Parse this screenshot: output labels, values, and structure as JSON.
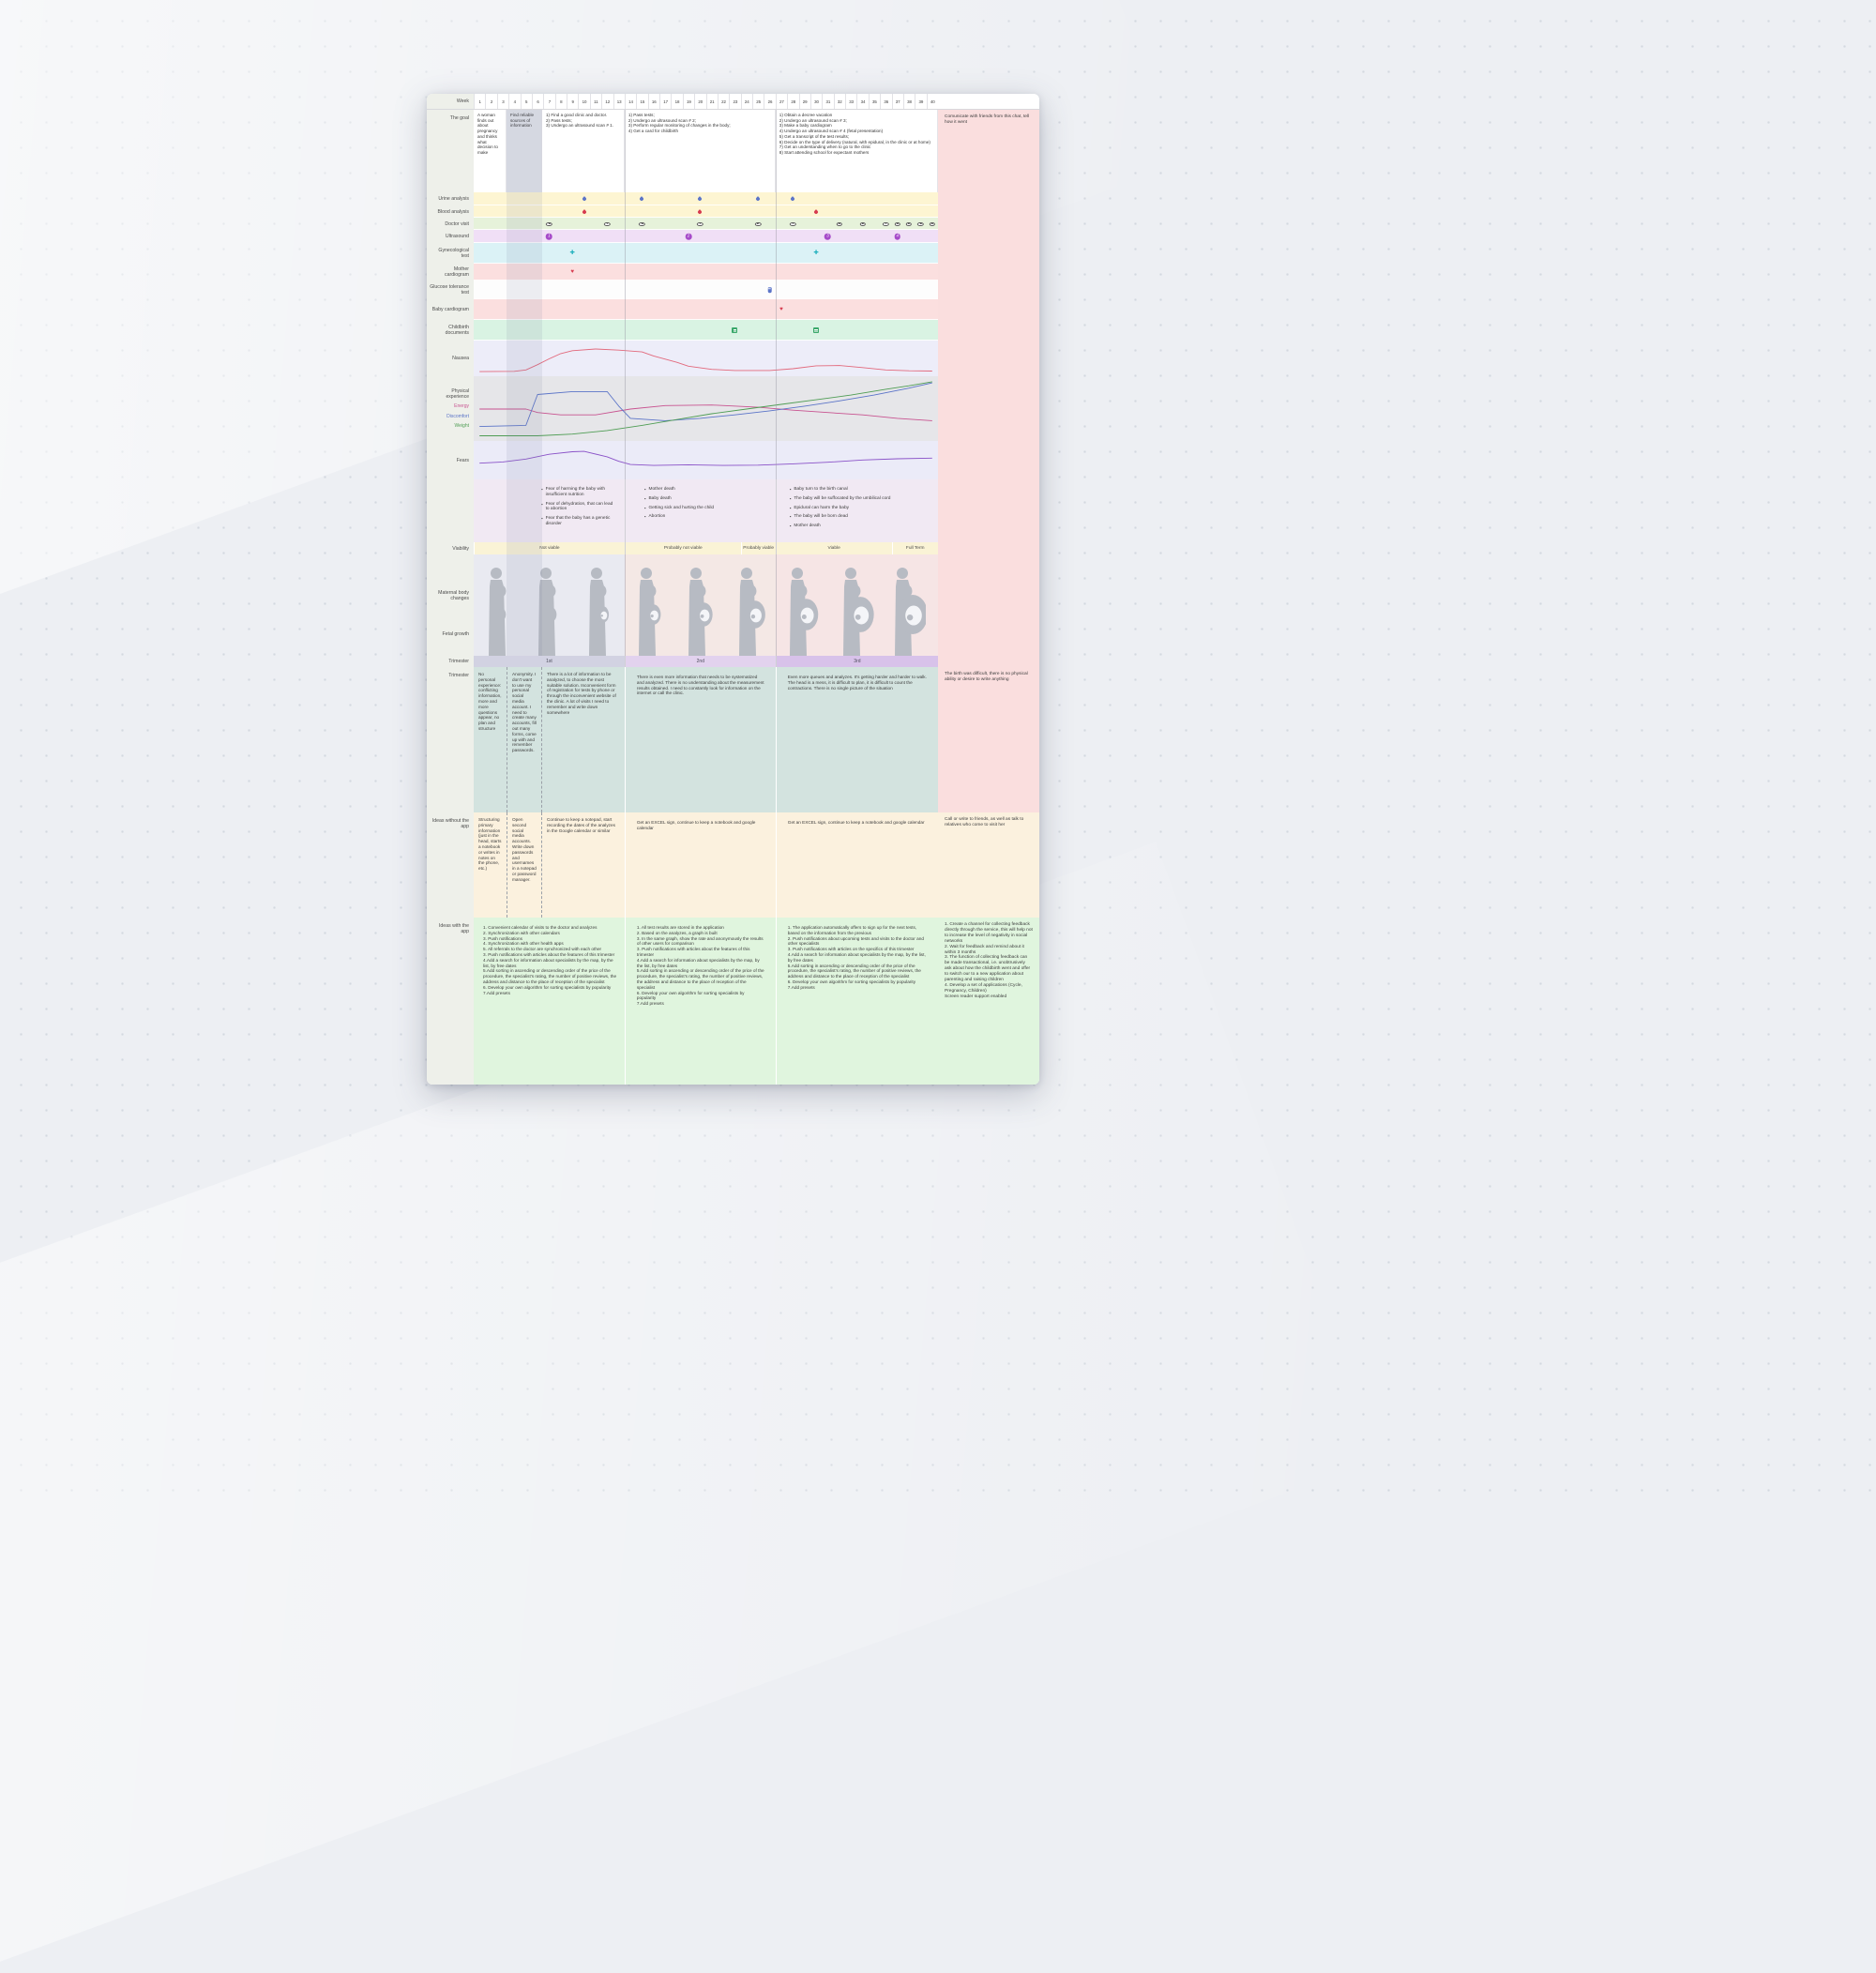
{
  "header": {
    "week_label": "Week",
    "weeks": [
      1,
      2,
      3,
      4,
      5,
      6,
      7,
      8,
      9,
      10,
      11,
      12,
      13,
      14,
      15,
      16,
      17,
      18,
      19,
      20,
      21,
      22,
      23,
      24,
      25,
      26,
      27,
      28,
      29,
      30,
      31,
      32,
      33,
      34,
      35,
      36,
      37,
      38,
      39,
      40
    ]
  },
  "goal": {
    "label": "The goal",
    "cells": [
      "A woman finds out about pregnancy and thinks what decision to make",
      "Find reliable sources of information",
      "1) Find a good clinic and doctor.\n2) Pass tests;\n3) Undergo an ultrasound scan # 1.",
      "1) Pass tests;\n2) Undergo an ultrasound scan # 2;\n3) Perform regular monitoring of changes in the body;\n4) Get a card for childbirth",
      "1) Obtain a decree vacation\n2) Undergo an ultrasound scan # 3;\n3) Make a baby cardiogram\n4) Undergo an ultrasound scan # 4 (fetal presentation)\n5) Get a transcript of the test results;\n6) Decide on the type of delivery (natural, with epidural, in the clinic or at home)\n7) Get an understanding when to go to the clinic\n8) Start attending school for expectant mothers"
    ],
    "right": "Comunicate with friends from this chat, tell how it went"
  },
  "tests": [
    {
      "label": "Urine analysis",
      "icon": "drop",
      "icon_name": "urine-drop-icon",
      "color": "#5b74c8",
      "band": "#fdf5d2",
      "weeks": [
        10,
        15,
        20,
        25,
        28
      ]
    },
    {
      "label": "Blood analysis",
      "icon": "drop",
      "icon_name": "blood-drop-icon",
      "color": "#d63b4f",
      "band": "#fdf5d2",
      "weeks": [
        10,
        20,
        30
      ]
    },
    {
      "label": "Doctor visit",
      "icon": "eye",
      "icon_name": "eye-icon",
      "color": "#5c5c5c",
      "band": "#e6f2da",
      "weeks": [
        7,
        12,
        15,
        20,
        25,
        28,
        32,
        34,
        36,
        37,
        38,
        39,
        40
      ]
    },
    {
      "label": "Ultrasound",
      "icon": "num",
      "icon_name": "ultrasound-number-icon",
      "color": "#a64ac9",
      "band": "#f0dff6",
      "weeks": [
        7,
        19,
        31,
        37
      ]
    },
    {
      "label": "Gynecological test",
      "icon": "plus",
      "icon_name": "plus-icon",
      "color": "#1fb0bd",
      "band": "#dbf2f6",
      "weeks": [
        9,
        30
      ]
    },
    {
      "label": "Mother cardiogram",
      "icon": "heart",
      "icon_name": "heart-icon",
      "color": "#d63b4f",
      "band": "#fbdfdf",
      "weeks": [
        9
      ]
    },
    {
      "label": "Glucose tolerance test",
      "icon": "cup",
      "icon_name": "glucose-cup-icon",
      "color": "#5b74c8",
      "band": "#fdfdfd",
      "weeks": [
        26
      ]
    },
    {
      "label": "Baby cardiogram",
      "icon": "heart",
      "icon_name": "heart-icon",
      "color": "#d63b4f",
      "band": "#fbdfdf",
      "weeks": [
        27
      ]
    },
    {
      "label": "Childbirth documents",
      "icon": "doc",
      "icon_name": "document-icon",
      "color": "#3aa86a",
      "band": "#d9f3e3",
      "weeks": [
        23,
        30
      ]
    }
  ],
  "charts": {
    "nausea": {
      "label": "Nausea",
      "color": "#e2697c",
      "points": [
        [
          1,
          0.06
        ],
        [
          4,
          0.07
        ],
        [
          5,
          0.12
        ],
        [
          6,
          0.3
        ],
        [
          7,
          0.5
        ],
        [
          8,
          0.68
        ],
        [
          9,
          0.78
        ],
        [
          11,
          0.84
        ],
        [
          13,
          0.8
        ],
        [
          15,
          0.74
        ],
        [
          16,
          0.6
        ],
        [
          18,
          0.38
        ],
        [
          19,
          0.25
        ],
        [
          21,
          0.14
        ],
        [
          23,
          0.1
        ],
        [
          26,
          0.1
        ],
        [
          28,
          0.16
        ],
        [
          30,
          0.26
        ],
        [
          32,
          0.27
        ],
        [
          34,
          0.2
        ],
        [
          36,
          0.12
        ],
        [
          38,
          0.09
        ],
        [
          40,
          0.08
        ]
      ]
    },
    "physical": {
      "label": "Physical experience",
      "series": [
        {
          "name": "Energy",
          "color": "#c85390",
          "points": [
            [
              1,
              0.5
            ],
            [
              5,
              0.5
            ],
            [
              6,
              0.44
            ],
            [
              8,
              0.4
            ],
            [
              11,
              0.4
            ],
            [
              14,
              0.5
            ],
            [
              17,
              0.56
            ],
            [
              21,
              0.57
            ],
            [
              25,
              0.53
            ],
            [
              28,
              0.48
            ],
            [
              31,
              0.44
            ],
            [
              34,
              0.4
            ],
            [
              37,
              0.34
            ],
            [
              40,
              0.3
            ]
          ]
        },
        {
          "name": "Discomfort",
          "color": "#5b74c8",
          "points": [
            [
              1,
              0.2
            ],
            [
              5,
              0.22
            ],
            [
              6,
              0.75
            ],
            [
              9,
              0.8
            ],
            [
              12,
              0.8
            ],
            [
              13,
              0.55
            ],
            [
              14,
              0.34
            ],
            [
              17,
              0.3
            ],
            [
              20,
              0.34
            ],
            [
              23,
              0.4
            ],
            [
              26,
              0.47
            ],
            [
              29,
              0.55
            ],
            [
              32,
              0.64
            ],
            [
              35,
              0.74
            ],
            [
              38,
              0.86
            ],
            [
              40,
              0.95
            ]
          ]
        },
        {
          "name": "Weight",
          "color": "#4f9d54",
          "points": [
            [
              1,
              0.04
            ],
            [
              6,
              0.04
            ],
            [
              9,
              0.07
            ],
            [
              12,
              0.13
            ],
            [
              15,
              0.22
            ],
            [
              18,
              0.32
            ],
            [
              21,
              0.42
            ],
            [
              24,
              0.5
            ],
            [
              27,
              0.58
            ],
            [
              30,
              0.66
            ],
            [
              33,
              0.74
            ],
            [
              36,
              0.84
            ],
            [
              38,
              0.9
            ],
            [
              40,
              0.97
            ]
          ]
        }
      ]
    },
    "fears": {
      "label": "Fears",
      "color": "#8a52c8",
      "points": [
        [
          1,
          0.42
        ],
        [
          3,
          0.46
        ],
        [
          5,
          0.55
        ],
        [
          7,
          0.7
        ],
        [
          9,
          0.78
        ],
        [
          10,
          0.79
        ],
        [
          12,
          0.62
        ],
        [
          13,
          0.48
        ],
        [
          14,
          0.38
        ],
        [
          16,
          0.35
        ],
        [
          19,
          0.37
        ],
        [
          22,
          0.35
        ],
        [
          25,
          0.36
        ],
        [
          28,
          0.4
        ],
        [
          31,
          0.45
        ],
        [
          34,
          0.52
        ],
        [
          37,
          0.56
        ],
        [
          40,
          0.58
        ]
      ]
    }
  },
  "fear_lists": [
    {
      "items": [
        "Fear of harming the baby with insufficient nutrition",
        "Fear of dehydration, that can lead to abortion",
        "Fear that the baby has a genetic disorder"
      ]
    },
    {
      "items": [
        "Mother death",
        "Baby death",
        "Getting sick and hurting the child",
        "Abortion"
      ]
    },
    {
      "items": [
        "Baby turn to the birth canal",
        "The baby will be suffocated by the umbilical cord",
        "Epidural can harm the baby",
        "The baby will be born dead",
        "Mother death"
      ]
    }
  ],
  "viability": {
    "label": "Viability",
    "segments": [
      {
        "text": "Not viable",
        "from": 1,
        "to": 13
      },
      {
        "text": "Probably not viable",
        "from": 14,
        "to": 23
      },
      {
        "text": "Probably viable",
        "from": 24,
        "to": 26
      },
      {
        "text": "Viable",
        "from": 27,
        "to": 36
      },
      {
        "text": "Full Term",
        "from": 37,
        "to": 40
      }
    ]
  },
  "body_changes": {
    "maternal_label": "Maternal body changes",
    "fetal_label": "Fetal growth",
    "stages": [
      {
        "belly": 0.02,
        "fetus": false
      },
      {
        "belly": 0.08,
        "fetus": false
      },
      {
        "belly": 0.18,
        "fetus": true
      },
      {
        "belly": 0.32,
        "fetus": true
      },
      {
        "belly": 0.45,
        "fetus": true
      },
      {
        "belly": 0.58,
        "fetus": true
      },
      {
        "belly": 0.72,
        "fetus": true
      },
      {
        "belly": 0.86,
        "fetus": true
      },
      {
        "belly": 1.0,
        "fetus": true
      }
    ]
  },
  "trimester_bar": {
    "label": "Trimester",
    "segments": [
      "1st",
      "2nd",
      "3rd"
    ]
  },
  "trimester_notes": {
    "label": "Trimester",
    "cells": [
      "No personal experience: conflicting information, more and more questions appear, no plan and structure",
      "Anonymity. I don't want to use my personal social media account. I need to create many accounts, fill out many forms, come up with and remember passwords.",
      "There is a lot of information to be analyzed, to choose the most suitable solution. Inconvenient form of registration for tests by phone or through the inconvenient website of the clinic. A lot of visits I need to remember and write down somewhere",
      "There is even more information that needs to be systematized and analyzed. There is no understanding about the measurement results obtained. I need to constantly look for information on the internet or call the clinic.",
      "Even more queues and analyzes. It's getting harder and harder to walk. The head is a mess, it is difficult to plan, it is difficult to count the contractions. There is no single picture of the situation"
    ],
    "right": "The birth was difficult, there is no physical ability or desire to write anything"
  },
  "ideas_without": {
    "label": "Ideas without the app",
    "cells": [
      "Structuring primary information (just in the head, starts a notebook or writes in notes on the phone, etc.)",
      "Open second social media accounts. Write down passwords and usernames in a notepad or password manager.",
      "Continue to keep a notepad, start recording the dates of the analyzes in the Google calendar or similar",
      "Get an EXCEL sign, continue to keep a notebook and google calendar",
      "Get an EXCEL sign, continue to keep a notebook and google calendar"
    ],
    "right": "Call or write to friends, as well as talk to relatives who come to visit her"
  },
  "ideas_with": {
    "label": "Ideas with the app",
    "cells": [
      "1. Convenient calendar of visits to the doctor and analyzes\n2. Synchronization with other calendars\n3. Push notifications\n4. Synchronization with other health apps\n5. All referrals to the doctor are synchronized with each other\n3. Push notifications with articles about the features of this trimester\n4.Add a search for information about specialists by the map, by the list, by free dates\n5.Add sorting in ascending or descending order of the price of the procedure, the specialist's rating, the number of positive reviews, the address and distance to the place of reception of the specialist\n6. Develop your own algorithm for sorting specialists by popularity\n7.Add presets",
      "1. All test results are stored in the application\n2. Based on the analyzes, a graph is built\n3. In the same graph, show the rate and anonymously the results of other users for comparison\n3. Push notifications with articles about the features of this trimester\n4.Add a search for information about specialists by the map, by the list, by free dates\n5.Add sorting in ascending or descending order of the price of the procedure, the specialist's rating, the number of positive reviews, the address and distance to the place of reception of the specialist\n6. Develop your own algorithm for sorting specialists by popularity\n7.Add presets",
      "1. The application automatically offers to sign up for the next tests, based on the information from the previous\n2. Push notifications about upcoming tests and visits to the doctor and other specialists\n3. Push notifications with articles on the specifics of this trimester\n4.Add a search for information about specialists by the map, by the list, by free dates\n5.Add sorting in ascending or descending order of the price of the procedure, the specialist's rating, the number of positive reviews, the address and distance to the place of reception of the specialist\n6. Develop your own algorithm for sorting specialists by popularity\n7.Add presets"
    ],
    "right": "1. Create a channel for collecting feedback directly through the service, this will help not to increase the level of negativity in social networks\n2. Wait for feedback and remind about it within 3 months\n3. The function of collecting feedback can be made transactional, i.e. unobtrusively ask about how the childbirth went and offer to switch our to a new application about parenting and raising children\n4. Develop a set of applications (Cycle, Pregnancy, Children)\nScreen reader support enabled"
  }
}
